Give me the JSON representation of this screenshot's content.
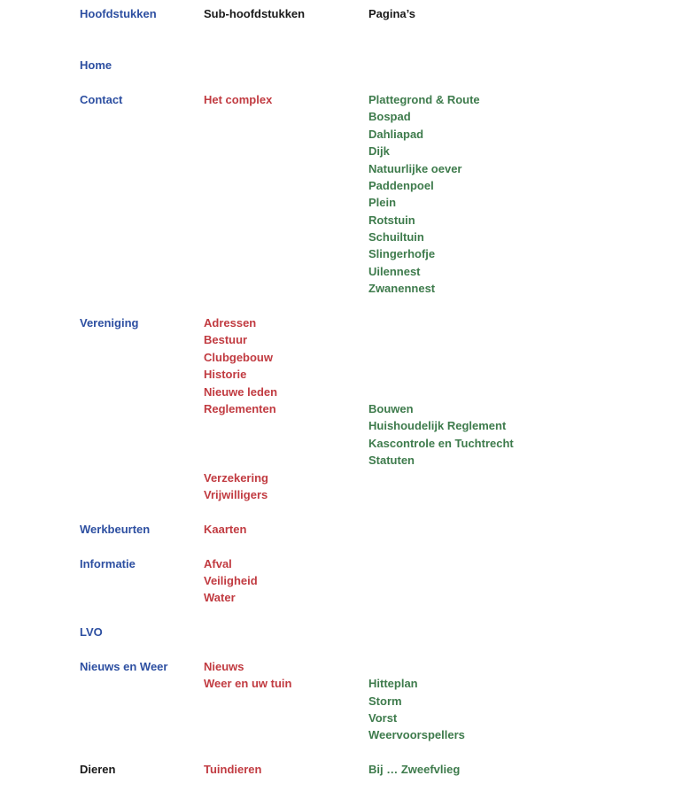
{
  "colors": {
    "chapter_blue": "#2d4fa1",
    "subchapter_red": "#c13b41",
    "page_green": "#3e7b4c",
    "heading_black": "#1a1a1a",
    "background": "#ffffff"
  },
  "headers": {
    "chapters": "Hoofdstukken",
    "subchapters": "Sub-hoofdstukken",
    "pages": "Pagina’s"
  },
  "sections": {
    "home": {
      "chapter": "Home"
    },
    "contact": {
      "chapter": "Contact",
      "subchapter": "Het complex",
      "pages": [
        "Plattegrond & Route",
        "Bospad",
        "Dahliapad",
        "Dijk",
        "Natuurlijke oever",
        "Paddenpoel",
        "Plein",
        "Rotstuin",
        "Schuiltuin",
        "Slingerhofje",
        "Uilennest",
        "Zwanennest"
      ]
    },
    "vereniging": {
      "chapter": "Vereniging",
      "subchapters_before": [
        "Adressen",
        "Bestuur",
        "Clubgebouw",
        "Historie",
        "Nieuwe leden",
        "Reglementen"
      ],
      "pages": [
        "Bouwen",
        "Huishoudelijk Reglement",
        "Kascontrole en Tuchtrecht",
        "Statuten"
      ],
      "subchapters_after": [
        "Verzekering",
        "Vrijwilligers"
      ]
    },
    "werkbeurten": {
      "chapter": "Werkbeurten",
      "subchapter": "Kaarten"
    },
    "informatie": {
      "chapter": "Informatie",
      "subchapters": [
        "Afval",
        "Veiligheid",
        "Water"
      ]
    },
    "lvo": {
      "chapter": "LVO"
    },
    "nieuws_en_weer": {
      "chapter": "Nieuws en Weer",
      "subchapters": [
        "Nieuws",
        "Weer en uw tuin"
      ],
      "pages": [
        "Hitteplan",
        "Storm",
        "Vorst",
        "Weervoorspellers"
      ]
    },
    "dieren": {
      "chapter": "Dieren",
      "subchapter": "Tuindieren",
      "page": "Bij … Zweefvlieg"
    }
  }
}
